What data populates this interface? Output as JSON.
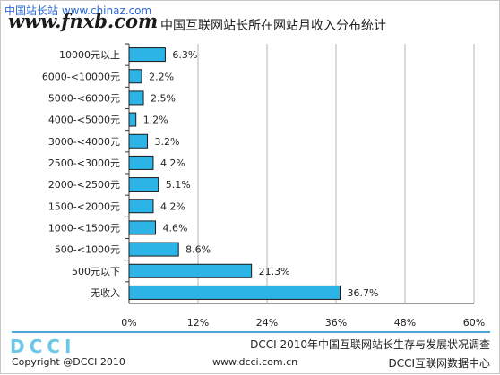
{
  "watermark": {
    "top_text": "中国站长站 www.chinaz.com",
    "url_text": "www.fnxb.com"
  },
  "chart_data": {
    "type": "bar",
    "title": "中国互联网站长所在网站月收入分布统计",
    "orientation": "horizontal",
    "categories": [
      "10000元以上",
      "6000-<10000元",
      "5000-<6000元",
      "4000-<5000元",
      "3000-<4000元",
      "2500-<3000元",
      "2000-<2500元",
      "1500-<2000元",
      "1000-<1500元",
      "500-<1000元",
      "500元以下",
      "无收入"
    ],
    "values": [
      6.3,
      2.2,
      2.5,
      1.2,
      3.2,
      4.2,
      5.1,
      4.2,
      4.6,
      8.6,
      21.3,
      36.7
    ],
    "value_labels": [
      "6.3%",
      "2.2%",
      "2.5%",
      "1.2%",
      "3.2%",
      "4.2%",
      "5.1%",
      "4.2%",
      "4.6%",
      "8.6%",
      "21.3%",
      "36.7%"
    ],
    "xlim": [
      0,
      60
    ],
    "xticks": [
      0,
      12,
      24,
      36,
      48,
      60
    ],
    "xtick_labels": [
      "0%",
      "12%",
      "24%",
      "36%",
      "48%",
      "60%"
    ],
    "grid": "vertical",
    "bar_color": "#2cb4e6",
    "bar_edge_color": "#1a1a1a"
  },
  "footer": {
    "logo": "DCCI",
    "report_title": "DCCI 2010年中国互联网站长生存与发展状况调查",
    "copyright": "Copyright @DCCI 2010",
    "website": "www.dcci.com.cn",
    "org": "DCCI互联网数据中心"
  }
}
